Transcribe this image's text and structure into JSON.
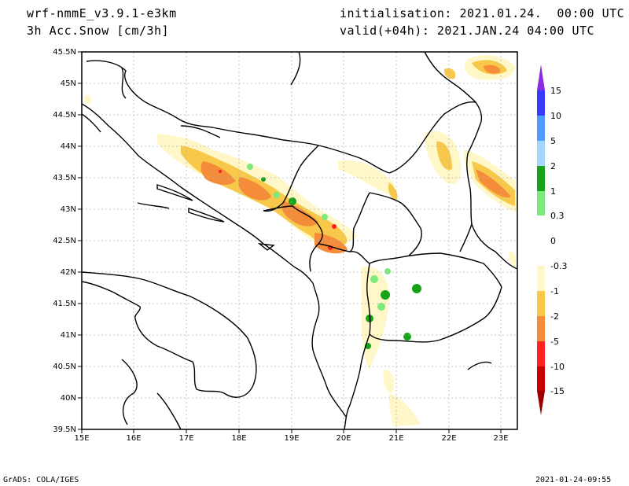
{
  "header": {
    "model": "wrf-nmmE_v3.9.1-e3km",
    "field": "3h Acc.Snow [cm/3h]",
    "initialisation": "initialisation: 2021.01.24.  00:00 UTC",
    "valid": "valid(+04h): 2021.JAN.24 04:00 UTC"
  },
  "footer": {
    "credit": "GrADS: COLA/IGES",
    "timestamp": "2021-01-24-09:55"
  },
  "map": {
    "lon_labels": [
      "15E",
      "16E",
      "17E",
      "18E",
      "19E",
      "20E",
      "21E",
      "22E",
      "23E"
    ],
    "lat_labels": [
      "39.5N",
      "40N",
      "40.5N",
      "41N",
      "41.5N",
      "42N",
      "42.5N",
      "43N",
      "43.5N",
      "44N",
      "44.5N",
      "45N",
      "45.5N"
    ],
    "lon_range": [
      15,
      23.3
    ],
    "lat_range": [
      39.5,
      45.5
    ],
    "grid": true
  },
  "colorbar": {
    "labels": [
      "15",
      "10",
      "5",
      "2",
      "1",
      "0.3",
      "0",
      "-0.3",
      "-1",
      "-2",
      "-5",
      "-10",
      "-15"
    ],
    "colors": [
      "#8a2be2",
      "#3a3aff",
      "#4f9bff",
      "#a6d6ff",
      "#17a317",
      "#7ce97c",
      "#ffffff",
      "#ffffff",
      "#fff7c8",
      "#f7c84a",
      "#f58c3a",
      "#ff2020",
      "#c80000",
      "#9b0000"
    ]
  }
}
